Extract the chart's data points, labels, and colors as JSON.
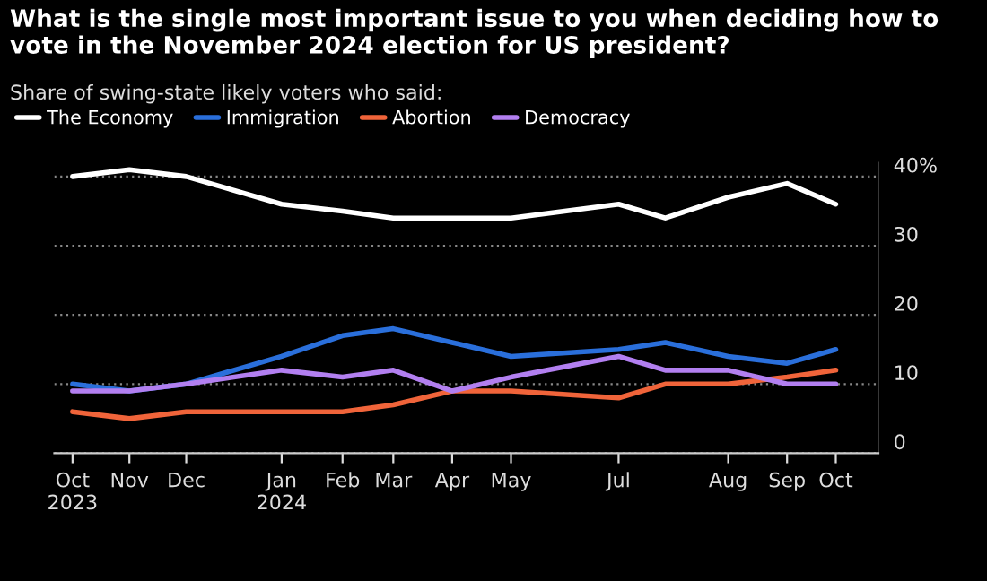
{
  "chart_data": {
    "type": "line",
    "title": "What is the single most important issue to you when deciding how to\nvote in the November 2024 election for US president?",
    "subtitle": "Share of swing-state likely voters who said:",
    "x": [
      "2023-10-10",
      "2023-11-07",
      "2023-12-05",
      "2024-01-21",
      "2024-02-20",
      "2024-03-16",
      "2024-04-14",
      "2024-05-13",
      "2024-07-05",
      "2024-07-28",
      "2024-08-28",
      "2024-09-26",
      "2024-10-20"
    ],
    "xticks": [
      {
        "value": "2023-10-10",
        "label": "Oct\n2023"
      },
      {
        "value": "2023-11-07",
        "label": "Nov"
      },
      {
        "value": "2023-12-05",
        "label": "Dec"
      },
      {
        "value": "2024-01-21",
        "label": "Jan\n2024"
      },
      {
        "value": "2024-02-20",
        "label": "Feb"
      },
      {
        "value": "2024-03-16",
        "label": "Mar"
      },
      {
        "value": "2024-04-14",
        "label": "Apr"
      },
      {
        "value": "2024-05-13",
        "label": "May"
      },
      {
        "value": "2024-07-05",
        "label": "Jul"
      },
      {
        "value": "2024-08-28",
        "label": "Aug"
      },
      {
        "value": "2024-09-26",
        "label": "Sep"
      },
      {
        "value": "2024-10-20",
        "label": "Oct"
      }
    ],
    "xlim": [
      "2023-10-01",
      "2024-11-10"
    ],
    "ylim": [
      0,
      42
    ],
    "yticks": [
      0,
      10,
      20,
      30,
      {
        "value": 40,
        "label": "40%"
      }
    ],
    "grid": "y",
    "legend": "top",
    "line_style": "solid",
    "marker": "none",
    "series": [
      {
        "name": "The Economy",
        "color": "#ffffff",
        "values": [
          40,
          41,
          40,
          36,
          35,
          34,
          34,
          34,
          36,
          34,
          37,
          39,
          36
        ]
      },
      {
        "name": "Immigration",
        "color": "#2a6fdb",
        "values": [
          10,
          9,
          10,
          14,
          17,
          18,
          16,
          14,
          15,
          16,
          14,
          13,
          15
        ]
      },
      {
        "name": "Abortion",
        "color": "#f0643a",
        "values": [
          6,
          5,
          6,
          6,
          6,
          7,
          9,
          9,
          8,
          10,
          10,
          11,
          12
        ]
      },
      {
        "name": "Democracy",
        "color": "#b27ff0",
        "values": [
          9,
          9,
          10,
          12,
          11,
          12,
          9,
          11,
          14,
          12,
          12,
          10,
          10
        ]
      }
    ]
  }
}
